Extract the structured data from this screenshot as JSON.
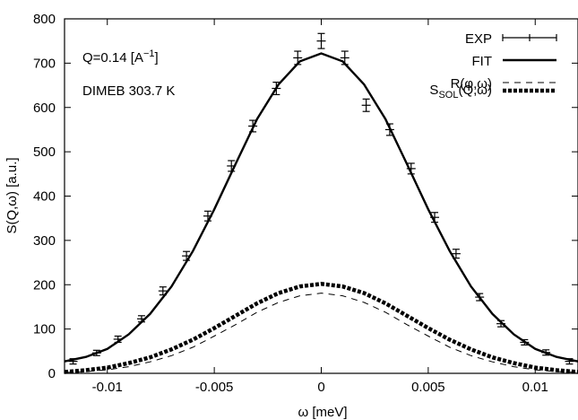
{
  "chart_data": {
    "type": "line",
    "xlabel": "ω [meV]",
    "ylabel": "S(Q,ω) [a.u.]",
    "xlim": [
      -0.012,
      0.012
    ],
    "ylim": [
      0,
      800
    ],
    "x_ticks": [
      -0.01,
      -0.005,
      0,
      0.005,
      0.01
    ],
    "x_tick_labels": [
      "-0.01",
      "-0.005",
      "0",
      "0.005",
      "0.01"
    ],
    "y_ticks": [
      0,
      100,
      200,
      300,
      400,
      500,
      600,
      700,
      800
    ],
    "y_tick_labels": [
      "0",
      "100",
      "200",
      "300",
      "400",
      "500",
      "600",
      "700",
      "800"
    ],
    "grid": false,
    "legend_position": "top-right",
    "annotations": {
      "q_prefix": "Q=0.14 [A",
      "q_sup": "−1",
      "q_suffix": "]",
      "sample": "DIMEB 303.7 K"
    },
    "legend": {
      "exp": "EXP",
      "fit": "FIT",
      "res": "R(φ,ω)",
      "sol_prefix": "S",
      "sol_sub": "SOL",
      "sol_suffix": "(Q,ω)"
    },
    "series": [
      {
        "name": "EXP",
        "style": "errorbar",
        "points": [
          {
            "x": -0.0116,
            "y": 27,
            "err": 6
          },
          {
            "x": -0.0105,
            "y": 46,
            "err": 6
          },
          {
            "x": -0.0095,
            "y": 77,
            "err": 7
          },
          {
            "x": -0.0084,
            "y": 123,
            "err": 7
          },
          {
            "x": -0.0074,
            "y": 186,
            "err": 9
          },
          {
            "x": -0.0063,
            "y": 265,
            "err": 10
          },
          {
            "x": -0.0053,
            "y": 355,
            "err": 11
          },
          {
            "x": -0.0042,
            "y": 468,
            "err": 12
          },
          {
            "x": -0.0032,
            "y": 558,
            "err": 13
          },
          {
            "x": -0.0021,
            "y": 643,
            "err": 14
          },
          {
            "x": -0.0011,
            "y": 712,
            "err": 15
          },
          {
            "x": 0.0,
            "y": 750,
            "err": 17
          },
          {
            "x": 0.0011,
            "y": 712,
            "err": 15
          },
          {
            "x": 0.0021,
            "y": 605,
            "err": 14
          },
          {
            "x": 0.0032,
            "y": 550,
            "err": 13
          },
          {
            "x": 0.0042,
            "y": 462,
            "err": 12
          },
          {
            "x": 0.0053,
            "y": 352,
            "err": 11
          },
          {
            "x": 0.0063,
            "y": 270,
            "err": 10
          },
          {
            "x": 0.0074,
            "y": 172,
            "err": 8
          },
          {
            "x": 0.0084,
            "y": 112,
            "err": 7
          },
          {
            "x": 0.0095,
            "y": 70,
            "err": 6
          },
          {
            "x": 0.0105,
            "y": 47,
            "err": 6
          },
          {
            "x": 0.0116,
            "y": 27,
            "err": 6
          }
        ]
      },
      {
        "name": "FIT",
        "style": "solid",
        "x": [
          -0.012,
          -0.011,
          -0.01,
          -0.009,
          -0.008,
          -0.007,
          -0.006,
          -0.005,
          -0.004,
          -0.003,
          -0.002,
          -0.001,
          0,
          0.001,
          0.002,
          0.003,
          0.004,
          0.005,
          0.006,
          0.007,
          0.008,
          0.009,
          0.01,
          0.011,
          0.012
        ],
        "y": [
          27,
          37,
          55,
          88,
          134,
          196,
          276,
          370,
          473,
          574,
          652,
          704,
          722,
          704,
          652,
          574,
          473,
          370,
          276,
          196,
          134,
          88,
          55,
          37,
          27
        ]
      },
      {
        "name": "R(φ,ω)",
        "style": "dashed-thin",
        "x": [
          -0.012,
          -0.011,
          -0.01,
          -0.009,
          -0.008,
          -0.007,
          -0.006,
          -0.005,
          -0.004,
          -0.003,
          -0.002,
          -0.001,
          0,
          0.001,
          0.002,
          0.003,
          0.004,
          0.005,
          0.006,
          0.007,
          0.008,
          0.009,
          0.01,
          0.011,
          0.012
        ],
        "y": [
          2,
          4,
          8,
          15,
          26,
          40,
          59,
          84,
          110,
          138,
          160,
          175,
          181,
          175,
          160,
          138,
          110,
          84,
          59,
          40,
          26,
          15,
          8,
          4,
          2
        ]
      },
      {
        "name": "S_SOL(Q,ω)",
        "style": "dashed-thick",
        "x": [
          -0.012,
          -0.011,
          -0.01,
          -0.009,
          -0.008,
          -0.007,
          -0.006,
          -0.005,
          -0.004,
          -0.003,
          -0.002,
          -0.001,
          0,
          0.001,
          0.002,
          0.003,
          0.004,
          0.005,
          0.006,
          0.007,
          0.008,
          0.009,
          0.01,
          0.011,
          0.012
        ],
        "y": [
          3,
          7,
          13,
          23,
          36,
          54,
          76,
          102,
          130,
          158,
          181,
          196,
          202,
          196,
          181,
          158,
          130,
          102,
          76,
          54,
          36,
          23,
          13,
          7,
          3
        ]
      }
    ]
  }
}
